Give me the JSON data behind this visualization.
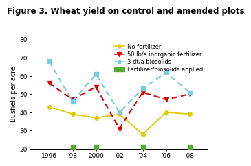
{
  "title": "Figure 3. Wheat yield on control and amended plots",
  "ylabel": "Bushels per acre",
  "years": [
    1996,
    1998,
    2000,
    2002,
    2004,
    2006,
    2008
  ],
  "year_labels": [
    "1996",
    "'98",
    "2000",
    "'02",
    "'04",
    "'06",
    "'08"
  ],
  "no_fert": [
    43,
    39,
    37,
    39,
    28,
    40,
    39
  ],
  "inorganic_fert": [
    56,
    47,
    54,
    31,
    51,
    47,
    50
  ],
  "biosolids": [
    68,
    46,
    61,
    40,
    53,
    62,
    51
  ],
  "applied_years": [
    1998,
    2000,
    2004,
    2008
  ],
  "applied_y": 21,
  "ylim": [
    20,
    80
  ],
  "xlim": [
    1994.5,
    2009.5
  ],
  "no_fert_color": "#ddcc00",
  "inorganic_color": "#dd0000",
  "biosolids_color": "#77ccdd",
  "applied_color": "#55aa33",
  "legend_no_fert": "No fertilizer",
  "legend_inorganic": "50 lb/a inorganic fertilizer",
  "legend_biosolids": "3 dt/a biosolids",
  "legend_applied": "Fertilizer/biosolids applied",
  "title_fontsize": 8.5,
  "axis_fontsize": 7,
  "tick_fontsize": 6.5,
  "legend_fontsize": 6.0
}
